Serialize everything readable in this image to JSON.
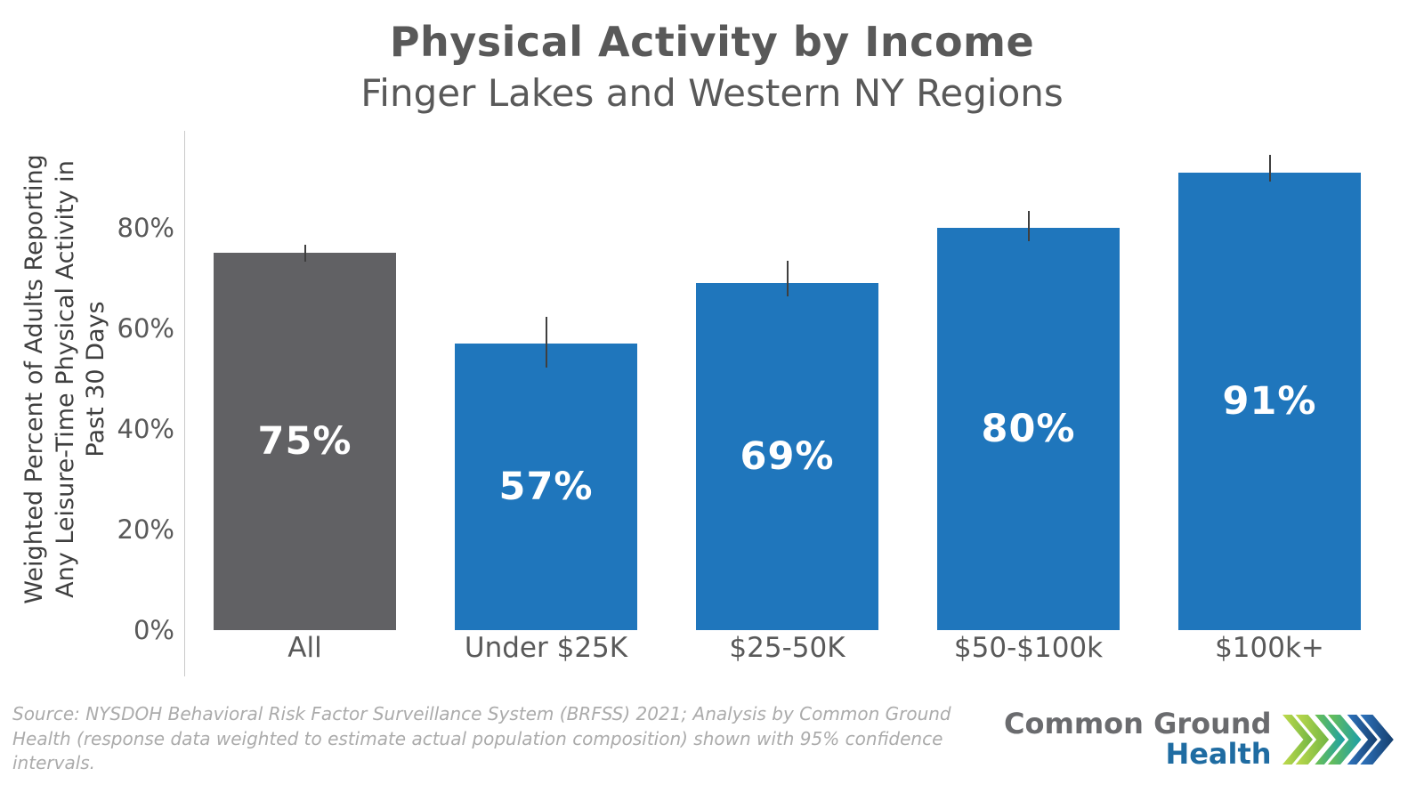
{
  "page": {
    "background": "#FFFFFF"
  },
  "chart_data": {
    "type": "bar",
    "title": "Physical Activity by Income",
    "subtitle": "Finger Lakes and Western NY Regions",
    "ylabel_lines": [
      "Weighted Percent of Adults Reporting",
      "Any Leisure-Time Physical Activity in",
      "Past 30 Days"
    ],
    "categories": [
      "All",
      "Under $25K",
      "$25-50K",
      "$50-$100k",
      "$100k+"
    ],
    "values": [
      75,
      57,
      69,
      80,
      91
    ],
    "value_labels": [
      "75%",
      "57%",
      "69%",
      "80%",
      "91%"
    ],
    "ci_low": [
      73.3,
      52.2,
      66.3,
      77.4,
      89.2
    ],
    "ci_high": [
      76.7,
      62.3,
      73.4,
      83.4,
      94.5
    ],
    "yticks": [
      0,
      20,
      40,
      60,
      80
    ],
    "ytick_labels": [
      "0%",
      "20%",
      "40%",
      "60%",
      "80%"
    ],
    "ylim": [
      0,
      99.3
    ],
    "grid": false,
    "legend": null,
    "bar_colors": [
      "#616164",
      "#1F76BC",
      "#1F76BC",
      "#1F76BC",
      "#1F76BC"
    ],
    "error_bar_color": "#3F3F3F",
    "axis_line_color": "#C9C9C9",
    "tick_label_color": "#595959",
    "category_label_color": "#595959",
    "value_label_color": "#FFFFFF",
    "title_color": "#595959"
  },
  "footer": {
    "source_text": "Source: NYSDOH Behavioral Risk Factor Surveillance System (BRFSS) 2021; Analysis by Common Ground Health (response data weighted to estimate actual population composition) shown with 95% confidence intervals.",
    "logo": {
      "line1": "Common Ground",
      "line2": "Health",
      "line1_color": "#6A6B6E",
      "line2_color": "#1F6CA2",
      "chevrons": [
        {
          "from": "#BFDA4C",
          "to": "#6FB544"
        },
        {
          "from": "#6EC152",
          "to": "#1B9FA8"
        },
        {
          "from": "#2F74BE",
          "to": "#153F6E"
        }
      ]
    }
  }
}
